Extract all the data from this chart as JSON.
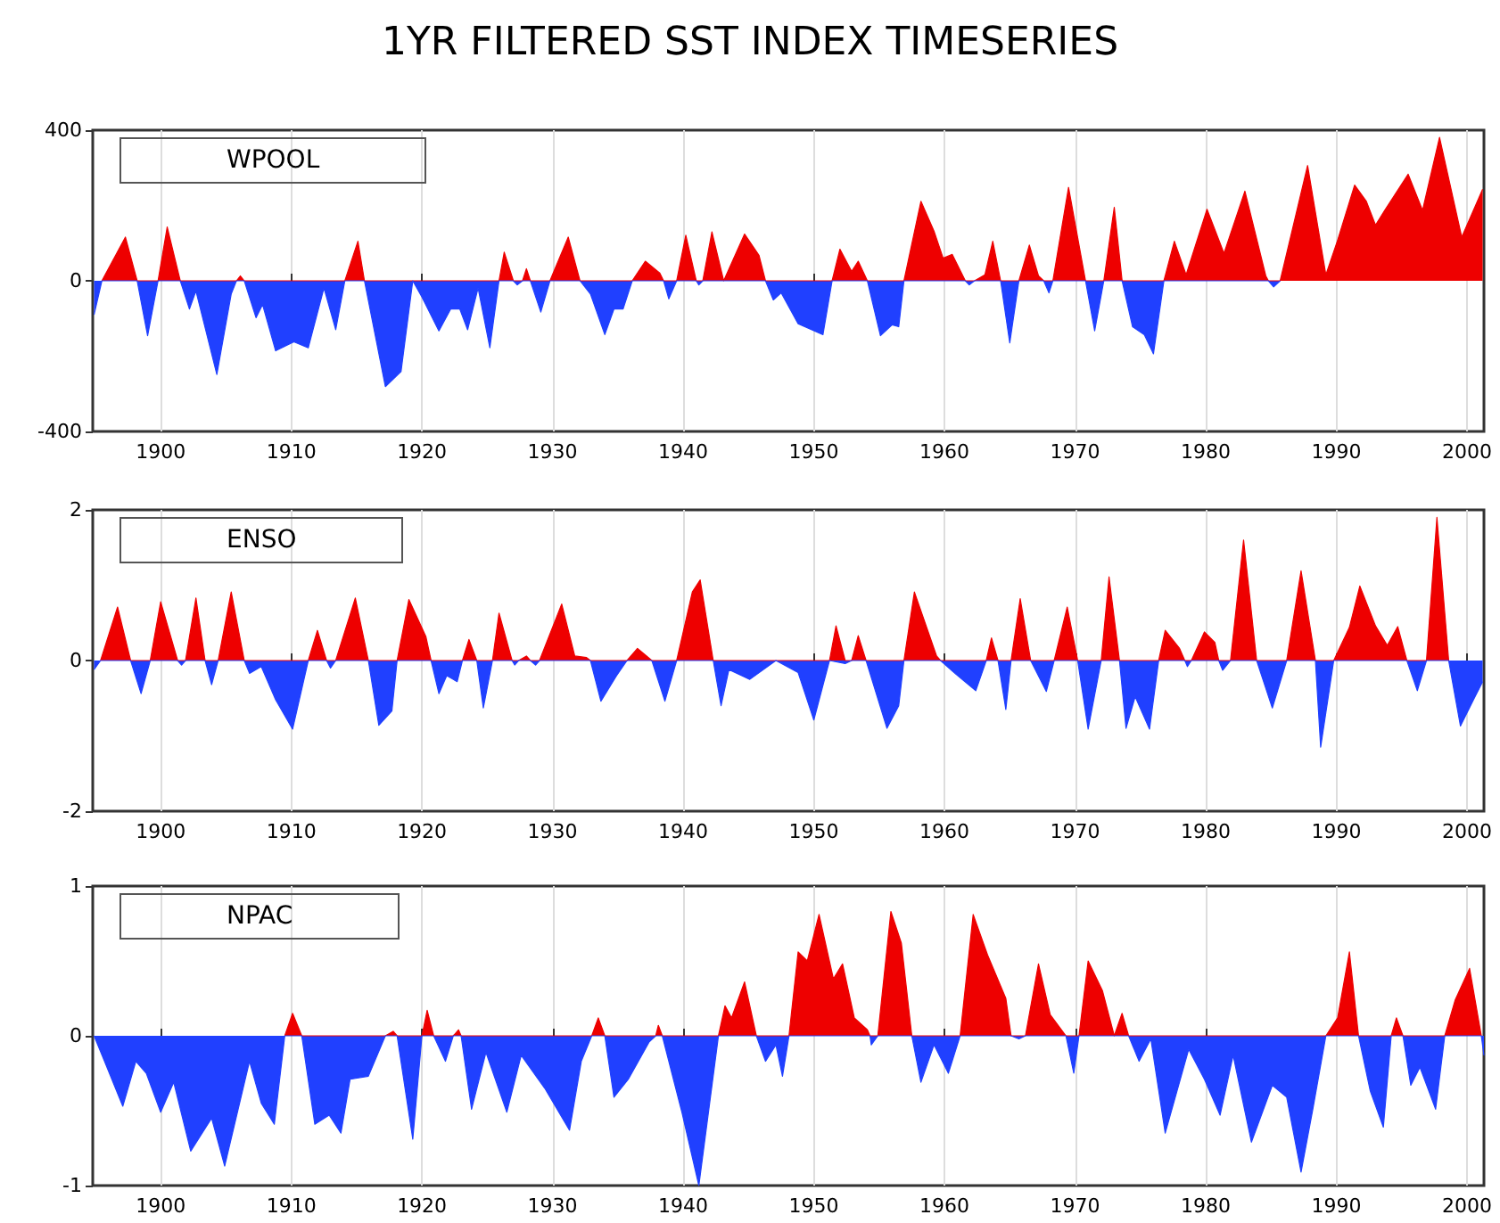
{
  "chart_data": [
    {
      "type": "area",
      "title": "1YR FILTERED SST INDEX TIMESERIES",
      "annotations": [
        "WPOOL"
      ],
      "xlim": [
        1894.8,
        2001.3
      ],
      "xticks": [
        1900,
        1910,
        1920,
        1930,
        1940,
        1950,
        1960,
        1970,
        1980,
        1990,
        2000
      ],
      "ylim": [
        -400,
        400
      ],
      "yticks": [
        -400,
        0,
        400
      ],
      "grid": "x",
      "series": [
        {
          "color": "#ee0000",
          "x": [
            1895.5,
            1897.3,
            1898.2,
            1899.8,
            1900.5,
            1901.5,
            1905.8,
            1906.1,
            1906.4,
            1914.1,
            1915.1,
            1915.6,
            1925.9,
            1926.3,
            1927.0,
            1927.7,
            1928.0,
            1928.3,
            1929.8,
            1931.2,
            1932.1,
            1936.1,
            1937.1,
            1938.2,
            1938.5,
            1939.5,
            1940.2,
            1941.0,
            1941.5,
            1942.2,
            1943.1,
            1944.7,
            1945.8,
            1946.3,
            1951.4,
            1952.0,
            1952.9,
            1953.4,
            1954.1,
            1956.9,
            1958.2,
            1959.2,
            1959.9,
            1960.6,
            1961.6,
            1962.3,
            1963.1,
            1963.7,
            1964.3,
            1965.7,
            1966.5,
            1967.2,
            1967.6,
            1968.3,
            1969.5,
            1970.8,
            1972.2,
            1973.0,
            1973.6,
            1976.8,
            1977.6,
            1978.5,
            1980.1,
            1981.4,
            1983.0,
            1984.6,
            1984.8,
            1985.7,
            1987.8,
            1989.2,
            1990.1,
            1991.4,
            1992.3,
            1993.0,
            1993.7,
            1995.5,
            1996.6,
            1997.9,
            1999.6,
            2001.2
          ],
          "values": [
            0,
            116,
            0,
            0,
            143,
            0,
            0,
            13,
            0,
            0,
            105,
            0,
            0,
            76,
            0,
            0,
            32,
            0,
            0,
            116,
            0,
            0,
            52,
            21,
            0,
            0,
            121,
            0,
            0,
            130,
            0,
            124,
            68,
            0,
            0,
            84,
            25,
            52,
            0,
            0,
            211,
            132,
            60,
            70,
            0,
            0,
            16,
            105,
            0,
            0,
            95,
            13,
            0,
            0,
            248,
            0,
            0,
            195,
            0,
            0,
            105,
            16,
            190,
            73,
            238,
            13,
            0,
            0,
            306,
            16,
            108,
            254,
            211,
            148,
            187,
            283,
            187,
            381,
            116,
            243
          ]
        },
        {
          "color": "#2040ff",
          "x": [
            1894.9,
            1895.5,
            1898.2,
            1899.0,
            1899.8,
            1901.5,
            1902.2,
            1902.7,
            1904.3,
            1905.4,
            1905.8,
            1906.4,
            1907.3,
            1907.8,
            1908.8,
            1910.2,
            1911.3,
            1912.5,
            1913.4,
            1914.1,
            1915.6,
            1917.2,
            1918.4,
            1919.3,
            1920.0,
            1921.3,
            1922.2,
            1922.9,
            1923.5,
            1924.3,
            1925.2,
            1925.9,
            1927.0,
            1927.3,
            1927.7,
            1928.3,
            1929.1,
            1929.8,
            1932.1,
            1932.9,
            1934.0,
            1934.7,
            1935.4,
            1936.1,
            1938.5,
            1938.9,
            1939.5,
            1941.0,
            1941.2,
            1941.5,
            1946.3,
            1946.9,
            1947.5,
            1948.8,
            1950.7,
            1951.4,
            1954.1,
            1955.1,
            1956.0,
            1956.5,
            1956.9,
            1961.6,
            1961.9,
            1962.3,
            1964.3,
            1965.0,
            1965.7,
            1967.6,
            1968.0,
            1968.3,
            1970.8,
            1971.5,
            1972.2,
            1973.6,
            1974.4,
            1975.3,
            1976.0,
            1976.8,
            1984.8,
            1985.2,
            1985.7
          ],
          "values": [
            -90,
            0,
            0,
            -146,
            0,
            0,
            -75,
            -27,
            -249,
            -35,
            0,
            0,
            -98,
            -63,
            -186,
            -162,
            -178,
            -19,
            -130,
            0,
            0,
            -281,
            -241,
            0,
            -43,
            -133,
            -75,
            -75,
            -130,
            -19,
            -178,
            0,
            0,
            -11,
            0,
            0,
            -83,
            0,
            0,
            -35,
            -143,
            -75,
            -75,
            0,
            0,
            -48,
            0,
            0,
            -11,
            0,
            0,
            -51,
            -32,
            -114,
            -143,
            0,
            0,
            -146,
            -117,
            -122,
            0,
            0,
            -11,
            0,
            0,
            -165,
            0,
            0,
            -32,
            0,
            0,
            -133,
            0,
            0,
            -122,
            -143,
            -194,
            0,
            0,
            -16,
            0
          ]
        }
      ]
    },
    {
      "type": "area",
      "annotations": [
        "ENSO"
      ],
      "xlim": [
        1894.8,
        2001.3
      ],
      "xticks": [
        1900,
        1910,
        1920,
        1930,
        1940,
        1950,
        1960,
        1970,
        1980,
        1990,
        2000
      ],
      "ylim": [
        -2,
        2
      ],
      "yticks": [
        -2,
        0,
        2
      ],
      "grid": "x",
      "series": [
        {
          "color": "#ee0000",
          "x": [
            1895.4,
            1896.7,
            1897.7,
            1899.2,
            1900.0,
            1901.3,
            1901.9,
            1902.7,
            1903.4,
            1904.4,
            1905.4,
            1906.4,
            1911.3,
            1912.0,
            1912.7,
            1913.4,
            1914.9,
            1915.9,
            1918.1,
            1919.0,
            1920.3,
            1920.7,
            1923.1,
            1923.6,
            1924.2,
            1925.4,
            1925.9,
            1926.9,
            1927.4,
            1928.0,
            1928.3,
            1929.0,
            1930.7,
            1931.7,
            1932.6,
            1932.9,
            1935.7,
            1936.5,
            1937.2,
            1937.6,
            1939.5,
            1940.7,
            1941.3,
            1942.3,
            1951.2,
            1951.7,
            1952.4,
            1952.9,
            1953.4,
            1954.0,
            1956.9,
            1957.7,
            1959.4,
            1959.7,
            1963.2,
            1963.6,
            1964.1,
            1965.1,
            1965.8,
            1966.6,
            1968.4,
            1969.4,
            1970.2,
            1972.0,
            1972.6,
            1973.4,
            1976.4,
            1976.9,
            1978.0,
            1978.4,
            1978.9,
            1979.9,
            1980.7,
            1981.0,
            1981.9,
            1982.9,
            1983.9,
            1986.2,
            1987.3,
            1988.4,
            1989.8,
            1991.0,
            1991.8,
            1993.0,
            1993.9,
            1994.7,
            1995.4,
            1996.9,
            1997.7,
            1998.6
          ],
          "values": [
            0,
            0.71,
            0,
            0,
            0.78,
            0,
            0,
            0.83,
            0,
            0,
            0.91,
            0,
            0,
            0.4,
            0,
            0,
            0.83,
            0,
            0,
            0.81,
            0.32,
            0,
            0,
            0.28,
            0,
            0,
            0.63,
            0,
            0,
            0.06,
            0,
            0,
            0.75,
            0.06,
            0.04,
            0,
            0,
            0.16,
            0.06,
            0,
            0,
            0.91,
            1.07,
            0,
            0,
            0.46,
            0,
            0,
            0.33,
            0,
            0,
            0.91,
            0.06,
            0,
            0,
            0.3,
            0,
            0,
            0.82,
            0,
            0,
            0.71,
            0,
            0,
            1.11,
            0,
            0,
            0.4,
            0.16,
            0,
            0,
            0.38,
            0.24,
            0,
            0,
            1.6,
            0,
            0,
            1.19,
            0,
            0,
            0.44,
            0.99,
            0.46,
            0.2,
            0.45,
            0,
            0,
            1.9,
            0
          ]
        },
        {
          "color": "#2040ff",
          "x": [
            1894.9,
            1895.4,
            1897.7,
            1898.5,
            1899.2,
            1901.3,
            1901.6,
            1901.9,
            1903.4,
            1903.9,
            1904.4,
            1906.4,
            1906.8,
            1907.7,
            1908.8,
            1910.1,
            1911.3,
            1912.7,
            1913.0,
            1913.4,
            1915.9,
            1916.7,
            1917.7,
            1918.1,
            1920.7,
            1921.3,
            1921.9,
            1922.7,
            1923.1,
            1924.2,
            1924.7,
            1925.4,
            1926.9,
            1927.1,
            1927.4,
            1928.3,
            1928.7,
            1929.0,
            1932.9,
            1933.7,
            1934.9,
            1935.7,
            1937.6,
            1938.6,
            1939.5,
            1942.3,
            1942.9,
            1943.5,
            1945.1,
            1947.1,
            1948.8,
            1950.0,
            1951.2,
            1952.4,
            1952.9,
            1954.0,
            1955.6,
            1956.5,
            1956.9,
            1959.7,
            1960.8,
            1962.4,
            1963.2,
            1964.1,
            1964.7,
            1965.1,
            1966.6,
            1967.8,
            1968.4,
            1970.2,
            1971.0,
            1972.0,
            1973.4,
            1973.9,
            1974.6,
            1975.7,
            1976.4,
            1978.4,
            1978.6,
            1978.9,
            1981.0,
            1981.3,
            1981.9,
            1983.9,
            1985.1,
            1986.2,
            1988.4,
            1988.8,
            1989.8,
            1995.4,
            1996.2,
            1996.9,
            1998.6,
            1999.5,
            2000.5,
            2001.2
          ],
          "values": [
            -0.12,
            0,
            0,
            -0.44,
            0,
            0,
            -0.06,
            0,
            0,
            -0.32,
            0,
            0,
            -0.17,
            -0.08,
            -0.52,
            -0.91,
            0,
            0,
            -0.1,
            0,
            0,
            -0.86,
            -0.67,
            0,
            0,
            -0.44,
            -0.2,
            -0.28,
            0,
            0,
            -0.63,
            0,
            0,
            -0.06,
            0,
            0,
            -0.06,
            0,
            0,
            -0.54,
            -0.2,
            0,
            0,
            -0.54,
            0,
            0,
            -0.6,
            -0.12,
            -0.25,
            0,
            -0.16,
            -0.79,
            0,
            -0.04,
            0,
            0,
            -0.9,
            -0.6,
            0,
            0,
            -0.17,
            -0.4,
            0,
            0,
            -0.65,
            0,
            0,
            -0.41,
            0,
            0,
            -0.91,
            0,
            0,
            -0.9,
            -0.48,
            -0.91,
            0,
            0,
            -0.08,
            0,
            0,
            -0.13,
            0,
            0,
            -0.63,
            0,
            0,
            -1.15,
            0,
            0,
            -0.4,
            0,
            0,
            -0.87,
            -0.52,
            -0.28
          ]
        }
      ]
    },
    {
      "type": "area",
      "annotations": [
        "NPAC"
      ],
      "xlim": [
        1894.8,
        2001.3
      ],
      "xticks": [
        1900,
        1910,
        1920,
        1930,
        1940,
        1950,
        1960,
        1970,
        1980,
        1990,
        2000
      ],
      "ylim": [
        -1,
        1
      ],
      "yticks": [
        -1,
        0,
        1
      ],
      "grid": "x",
      "series": [
        {
          "color": "#ee0000",
          "x": [
            1909.5,
            1910.1,
            1910.8,
            1917.2,
            1917.8,
            1918.1,
            1920.0,
            1920.4,
            1920.9,
            1922.4,
            1922.8,
            1923.0,
            1933.0,
            1933.5,
            1934.0,
            1937.9,
            1938.1,
            1938.4,
            1942.7,
            1943.2,
            1943.7,
            1944.7,
            1945.6,
            1948.1,
            1948.8,
            1949.5,
            1950.4,
            1951.5,
            1952.2,
            1953.1,
            1954.1,
            1954.3,
            1954.9,
            1955.9,
            1956.7,
            1957.5,
            1961.2,
            1962.2,
            1963.3,
            1964.7,
            1965.1,
            1966.2,
            1967.2,
            1968.1,
            1969.3,
            1970.3,
            1971.0,
            1972.1,
            1973.0,
            1973.6,
            1974.1,
            1989.2,
            1990.1,
            1991.0,
            1991.7,
            1994.2,
            1994.6,
            1995.1,
            1998.3,
            1999.1,
            2000.2,
            2001.1
          ],
          "values": [
            0,
            0.15,
            0,
            0,
            0.03,
            0,
            0,
            0.17,
            0,
            0,
            0.04,
            0,
            0,
            0.12,
            0,
            0,
            0.07,
            0,
            0,
            0.2,
            0.12,
            0.36,
            0,
            0,
            0.56,
            0.5,
            0.81,
            0.38,
            0.48,
            0.12,
            0.04,
            0,
            0,
            0.83,
            0.62,
            0,
            0,
            0.81,
            0.54,
            0.25,
            0,
            0,
            0.48,
            0.14,
            0,
            0,
            0.5,
            0.3,
            0,
            0.15,
            0,
            0,
            0.12,
            0.56,
            0,
            0,
            0.12,
            0,
            0,
            0.24,
            0.45,
            0
          ]
        },
        {
          "color": "#2040ff",
          "x": [
            1894.9,
            1895.7,
            1897.1,
            1898.1,
            1898.9,
            1900.0,
            1901.0,
            1902.3,
            1903.9,
            1904.9,
            1906.8,
            1907.7,
            1908.7,
            1909.5,
            1910.8,
            1911.8,
            1912.9,
            1913.8,
            1914.5,
            1915.9,
            1917.2,
            1918.1,
            1919.3,
            1920.0,
            1920.9,
            1921.8,
            1922.4,
            1923.0,
            1923.8,
            1924.9,
            1926.5,
            1927.6,
            1929.4,
            1931.3,
            1932.2,
            1933.0,
            1934.0,
            1934.7,
            1935.8,
            1937.4,
            1937.9,
            1938.4,
            1939.9,
            1941.2,
            1942.7,
            1945.6,
            1946.3,
            1947.1,
            1947.6,
            1948.1,
            1954.3,
            1954.4,
            1954.9,
            1957.5,
            1958.2,
            1959.2,
            1960.3,
            1961.2,
            1965.1,
            1965.7,
            1966.2,
            1969.3,
            1969.9,
            1970.3,
            1974.1,
            1974.9,
            1975.8,
            1976.9,
            1978.7,
            1979.9,
            1981.1,
            1982.1,
            1983.5,
            1985.1,
            1986.2,
            1987.3,
            1988.2,
            1989.2,
            1991.7,
            1992.6,
            1993.6,
            1994.2,
            1995.1,
            1995.7,
            1996.4,
            1997.6,
            1998.3,
            2001.1,
            2001.3
          ],
          "values": [
            0,
            -0.17,
            -0.47,
            -0.17,
            -0.25,
            -0.51,
            -0.31,
            -0.77,
            -0.55,
            -0.87,
            -0.17,
            -0.45,
            -0.59,
            0,
            0,
            -0.59,
            -0.53,
            -0.65,
            -0.29,
            -0.27,
            0,
            0,
            -0.69,
            0,
            0,
            -0.17,
            0,
            0,
            -0.49,
            -0.11,
            -0.51,
            -0.13,
            -0.35,
            -0.63,
            -0.17,
            0,
            0,
            -0.41,
            -0.29,
            -0.04,
            0,
            0,
            -0.51,
            -1,
            0,
            0,
            -0.17,
            -0.06,
            -0.27,
            0,
            0,
            -0.06,
            0,
            0,
            -0.31,
            -0.06,
            -0.25,
            0,
            0,
            -0.02,
            0,
            0,
            -0.25,
            0,
            0,
            -0.17,
            -0.02,
            -0.65,
            -0.09,
            -0.29,
            -0.53,
            -0.13,
            -0.71,
            -0.33,
            -0.41,
            -0.91,
            -0.49,
            0,
            0,
            -0.37,
            -0.61,
            0,
            0,
            -0.33,
            -0.21,
            -0.49,
            0,
            0,
            -0.13
          ]
        }
      ]
    }
  ]
}
